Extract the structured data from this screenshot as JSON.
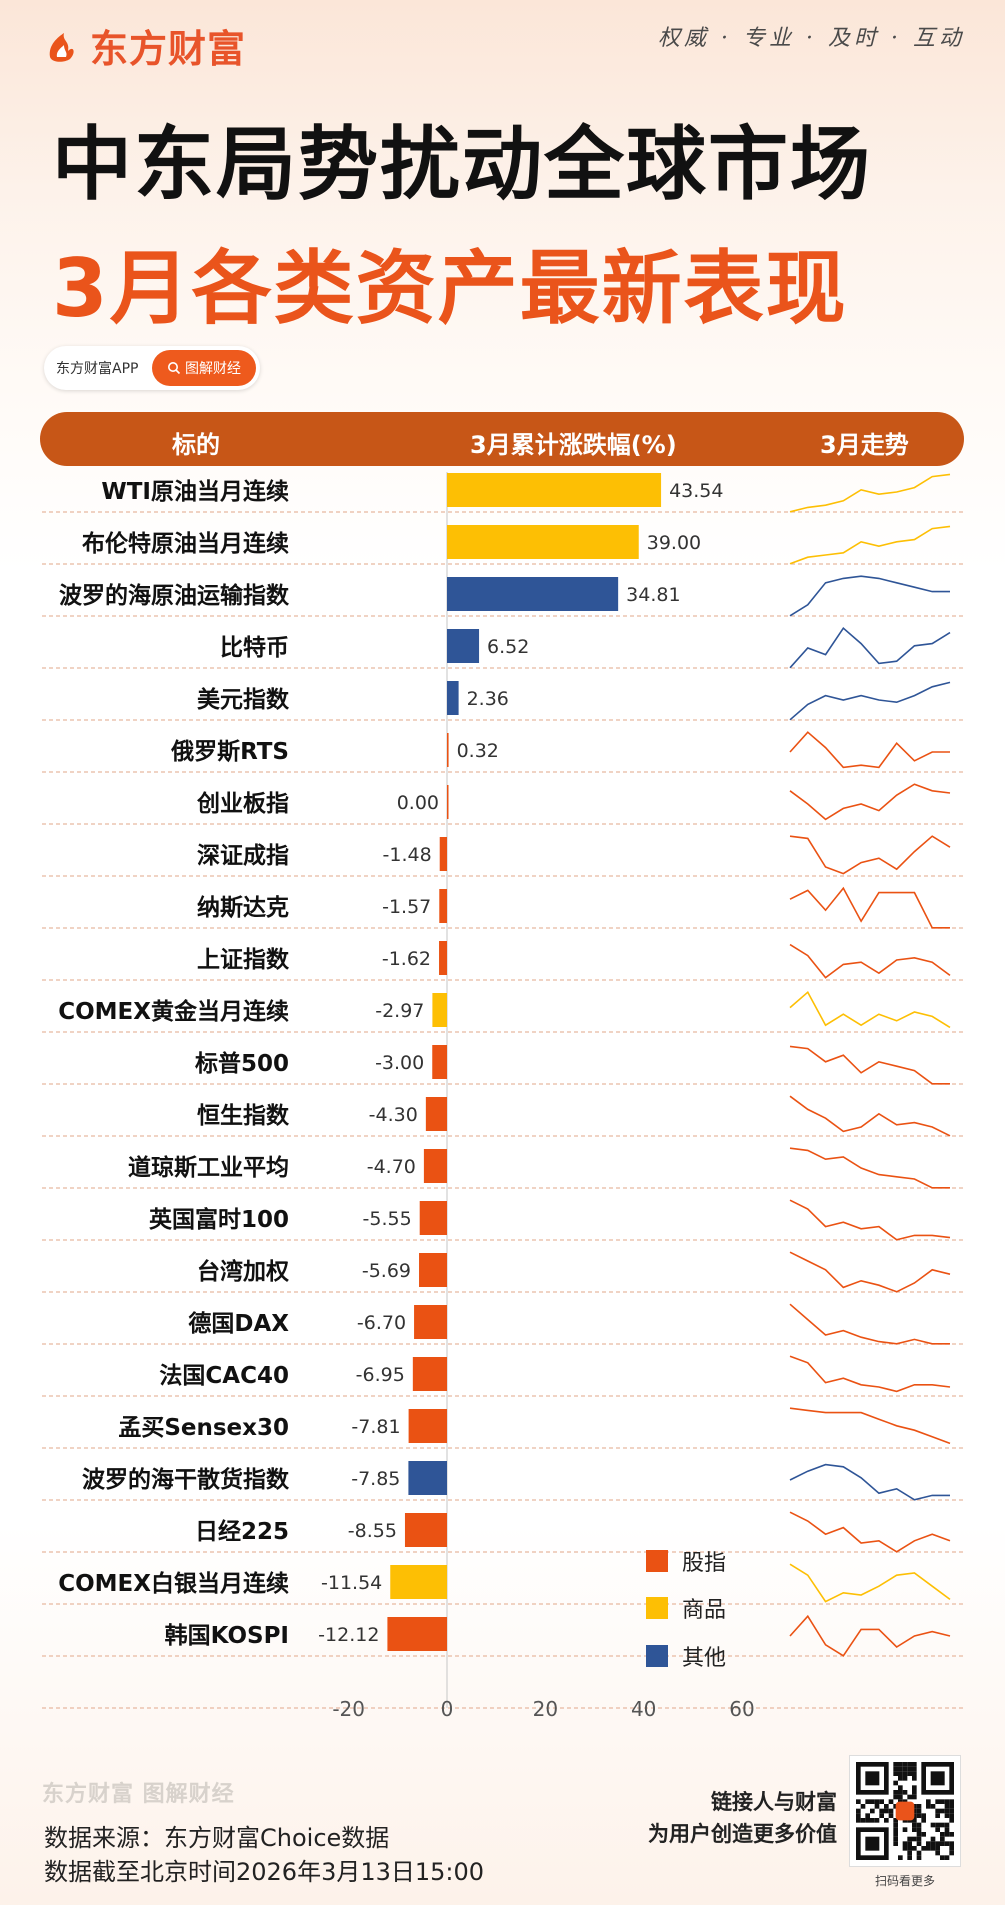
{
  "brand": {
    "name": "东方财富"
  },
  "slogan": "权威 · 专业 · 及时 · 互动",
  "title_line1": "中东局势扰动全球市场",
  "title_line2": "3月各类资产最新表现",
  "pill": {
    "app": "东方财富APP",
    "tag": "图解财经"
  },
  "header": {
    "col1": "标的",
    "col2": "3月累计涨跌幅(%)",
    "col3": "3月走势"
  },
  "colors": {
    "股指": "#ea5213",
    "商品": "#fdbf04",
    "其他": "#2f5597",
    "header": "#c75617",
    "title_accent": "#ea541b"
  },
  "legend": [
    {
      "label": "股指",
      "color": "#ea5213"
    },
    {
      "label": "商品",
      "color": "#fdbf04"
    },
    {
      "label": "其他",
      "color": "#2f5597"
    }
  ],
  "chart_data": {
    "type": "bar",
    "orientation": "horizontal",
    "xlim": [
      -20,
      60
    ],
    "xticks": [
      "-20",
      "0",
      "20",
      "40",
      "60"
    ],
    "categories": [
      "WTI原油当月连续",
      "布伦特原油当月连续",
      "波罗的海原油运输指数",
      "比特币",
      "美元指数",
      "俄罗斯RTS",
      "创业板指",
      "深证成指",
      "纳斯达克",
      "上证指数",
      "COMEX黄金当月连续",
      "标普500",
      "恒生指数",
      "道琼斯工业平均",
      "英国富时100",
      "台湾加权",
      "德国DAX",
      "法国CAC40",
      "孟买Sensex30",
      "波罗的海干散货指数",
      "日经225",
      "COMEX白银当月连续",
      "韩国KOSPI"
    ],
    "values": [
      43.54,
      39.0,
      34.81,
      6.52,
      2.36,
      0.32,
      0.0,
      -1.48,
      -1.57,
      -1.62,
      -2.97,
      -3.0,
      -4.3,
      -4.7,
      -5.55,
      -5.69,
      -6.7,
      -6.95,
      -7.81,
      -7.85,
      -8.55,
      -11.54,
      -12.12
    ],
    "labels": [
      "43.54",
      "39.00",
      "34.81",
      "6.52",
      "2.36",
      "0.32",
      "0.00",
      "-1.48",
      "-1.57",
      "-1.62",
      "-2.97",
      "-3.00",
      "-4.30",
      "-4.70",
      "-5.55",
      "-5.69",
      "-6.70",
      "-6.95",
      "-7.81",
      "-7.85",
      "-8.55",
      "-11.54",
      "-12.12"
    ],
    "groups": [
      "商品",
      "商品",
      "其他",
      "其他",
      "其他",
      "股指",
      "股指",
      "股指",
      "股指",
      "股指",
      "商品",
      "股指",
      "股指",
      "股指",
      "股指",
      "股指",
      "股指",
      "股指",
      "股指",
      "其他",
      "股指",
      "商品",
      "股指"
    ],
    "trends": [
      [
        0.05,
        0.15,
        0.2,
        0.3,
        0.55,
        0.45,
        0.5,
        0.6,
        0.85,
        0.9
      ],
      [
        0.05,
        0.2,
        0.25,
        0.3,
        0.55,
        0.45,
        0.55,
        0.6,
        0.85,
        0.9
      ],
      [
        0.05,
        0.3,
        0.8,
        0.9,
        0.95,
        0.9,
        0.8,
        0.7,
        0.6,
        0.6
      ],
      [
        0.05,
        0.5,
        0.35,
        0.95,
        0.6,
        0.15,
        0.2,
        0.55,
        0.6,
        0.85
      ],
      [
        0.05,
        0.4,
        0.6,
        0.5,
        0.6,
        0.5,
        0.45,
        0.6,
        0.8,
        0.9
      ],
      [
        0.5,
        0.95,
        0.6,
        0.15,
        0.2,
        0.15,
        0.7,
        0.3,
        0.5,
        0.5
      ],
      [
        0.8,
        0.5,
        0.15,
        0.4,
        0.5,
        0.35,
        0.7,
        0.95,
        0.8,
        0.75
      ],
      [
        0.95,
        0.9,
        0.25,
        0.1,
        0.35,
        0.45,
        0.2,
        0.6,
        0.95,
        0.7
      ],
      [
        0.7,
        0.9,
        0.45,
        0.95,
        0.2,
        0.85,
        0.85,
        0.85,
        0.05,
        0.05
      ],
      [
        0.85,
        0.6,
        0.1,
        0.4,
        0.45,
        0.2,
        0.5,
        0.55,
        0.45,
        0.15
      ],
      [
        0.6,
        0.95,
        0.2,
        0.45,
        0.2,
        0.45,
        0.3,
        0.5,
        0.4,
        0.15
      ],
      [
        0.9,
        0.85,
        0.55,
        0.7,
        0.3,
        0.55,
        0.45,
        0.35,
        0.05,
        0.05
      ],
      [
        0.95,
        0.65,
        0.45,
        0.15,
        0.25,
        0.55,
        0.3,
        0.35,
        0.25,
        0.05
      ],
      [
        0.95,
        0.9,
        0.7,
        0.75,
        0.5,
        0.35,
        0.3,
        0.25,
        0.05,
        0.05
      ],
      [
        0.95,
        0.75,
        0.35,
        0.45,
        0.3,
        0.35,
        0.05,
        0.15,
        0.15,
        0.1
      ],
      [
        0.95,
        0.75,
        0.55,
        0.15,
        0.3,
        0.2,
        0.05,
        0.25,
        0.55,
        0.45
      ],
      [
        0.95,
        0.6,
        0.25,
        0.35,
        0.2,
        0.1,
        0.05,
        0.15,
        0.05,
        0.05
      ],
      [
        0.95,
        0.8,
        0.35,
        0.45,
        0.3,
        0.25,
        0.15,
        0.3,
        0.3,
        0.25
      ],
      [
        0.95,
        0.9,
        0.85,
        0.85,
        0.85,
        0.7,
        0.55,
        0.45,
        0.3,
        0.15
      ],
      [
        0.5,
        0.7,
        0.85,
        0.8,
        0.55,
        0.2,
        0.3,
        0.05,
        0.15,
        0.15
      ],
      [
        0.95,
        0.75,
        0.45,
        0.6,
        0.25,
        0.3,
        0.05,
        0.3,
        0.45,
        0.3
      ],
      [
        0.95,
        0.7,
        0.1,
        0.3,
        0.25,
        0.45,
        0.7,
        0.75,
        0.45,
        0.15
      ],
      [
        0.5,
        0.95,
        0.3,
        0.05,
        0.65,
        0.65,
        0.25,
        0.5,
        0.6,
        0.5
      ]
    ]
  },
  "footer": {
    "logo_text": "东方财富 图解财经",
    "source": "数据来源：东方财富Choice数据",
    "cutoff": "数据截至北京时间2026年3月13日15:00",
    "slogan1": "链接人与财富",
    "slogan2": "为用户创造更多价值",
    "qr_caption": "扫码看更多"
  }
}
